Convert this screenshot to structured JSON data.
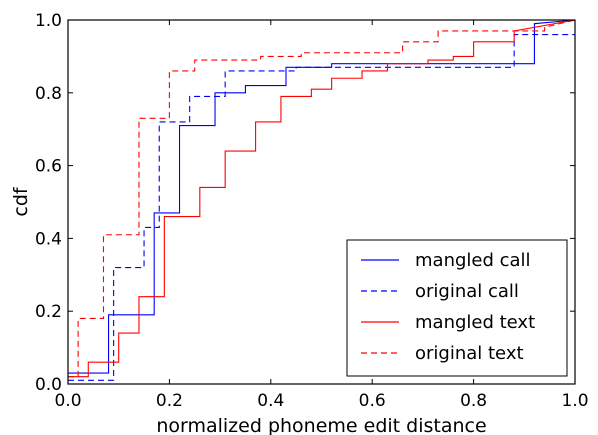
{
  "chart_data": {
    "type": "line",
    "xlabel": "normalized phoneme edit distance",
    "ylabel": "cdf",
    "xlim": [
      0.0,
      1.0
    ],
    "ylim": [
      0.0,
      1.0
    ],
    "grid": false,
    "legend_position": "lower-right",
    "x_ticks": [
      "0.0",
      "0.2",
      "0.4",
      "0.6",
      "0.8",
      "1.0"
    ],
    "y_ticks": [
      "0.0",
      "0.2",
      "0.4",
      "0.6",
      "0.8",
      "1.0"
    ],
    "series": [
      {
        "name": "mangled call",
        "color": "#0000ff",
        "dash": "solid",
        "points": [
          [
            0.0,
            0.03
          ],
          [
            0.08,
            0.03
          ],
          [
            0.08,
            0.19
          ],
          [
            0.17,
            0.19
          ],
          [
            0.17,
            0.47
          ],
          [
            0.22,
            0.47
          ],
          [
            0.22,
            0.71
          ],
          [
            0.29,
            0.71
          ],
          [
            0.29,
            0.8
          ],
          [
            0.35,
            0.8
          ],
          [
            0.35,
            0.82
          ],
          [
            0.43,
            0.82
          ],
          [
            0.43,
            0.87
          ],
          [
            0.52,
            0.87
          ],
          [
            0.52,
            0.88
          ],
          [
            0.92,
            0.88
          ],
          [
            0.92,
            0.99
          ],
          [
            1.0,
            1.0
          ]
        ]
      },
      {
        "name": "original call",
        "color": "#0000ff",
        "dash": "dashed",
        "points": [
          [
            0.0,
            0.01
          ],
          [
            0.09,
            0.01
          ],
          [
            0.09,
            0.32
          ],
          [
            0.15,
            0.32
          ],
          [
            0.15,
            0.43
          ],
          [
            0.18,
            0.43
          ],
          [
            0.18,
            0.72
          ],
          [
            0.24,
            0.72
          ],
          [
            0.24,
            0.79
          ],
          [
            0.31,
            0.79
          ],
          [
            0.31,
            0.86
          ],
          [
            0.45,
            0.86
          ],
          [
            0.45,
            0.87
          ],
          [
            0.88,
            0.87
          ],
          [
            0.88,
            0.96
          ],
          [
            1.0,
            0.96
          ]
        ]
      },
      {
        "name": "mangled text",
        "color": "#ff0000",
        "dash": "solid",
        "points": [
          [
            0.0,
            0.02
          ],
          [
            0.04,
            0.02
          ],
          [
            0.04,
            0.06
          ],
          [
            0.1,
            0.06
          ],
          [
            0.1,
            0.14
          ],
          [
            0.14,
            0.14
          ],
          [
            0.14,
            0.24
          ],
          [
            0.19,
            0.24
          ],
          [
            0.19,
            0.46
          ],
          [
            0.26,
            0.46
          ],
          [
            0.26,
            0.54
          ],
          [
            0.31,
            0.54
          ],
          [
            0.31,
            0.64
          ],
          [
            0.37,
            0.64
          ],
          [
            0.37,
            0.72
          ],
          [
            0.42,
            0.72
          ],
          [
            0.42,
            0.79
          ],
          [
            0.48,
            0.79
          ],
          [
            0.48,
            0.81
          ],
          [
            0.52,
            0.81
          ],
          [
            0.52,
            0.84
          ],
          [
            0.58,
            0.84
          ],
          [
            0.58,
            0.86
          ],
          [
            0.63,
            0.86
          ],
          [
            0.63,
            0.88
          ],
          [
            0.71,
            0.88
          ],
          [
            0.71,
            0.89
          ],
          [
            0.76,
            0.89
          ],
          [
            0.76,
            0.9
          ],
          [
            0.8,
            0.9
          ],
          [
            0.8,
            0.94
          ],
          [
            0.88,
            0.94
          ],
          [
            0.88,
            0.97
          ],
          [
            1.0,
            1.0
          ]
        ]
      },
      {
        "name": "original text",
        "color": "#ff0000",
        "dash": "dashed",
        "points": [
          [
            0.0,
            0.02
          ],
          [
            0.02,
            0.02
          ],
          [
            0.02,
            0.18
          ],
          [
            0.07,
            0.18
          ],
          [
            0.07,
            0.41
          ],
          [
            0.14,
            0.41
          ],
          [
            0.14,
            0.73
          ],
          [
            0.2,
            0.73
          ],
          [
            0.2,
            0.86
          ],
          [
            0.25,
            0.86
          ],
          [
            0.25,
            0.89
          ],
          [
            0.38,
            0.89
          ],
          [
            0.38,
            0.9
          ],
          [
            0.46,
            0.9
          ],
          [
            0.46,
            0.91
          ],
          [
            0.66,
            0.91
          ],
          [
            0.66,
            0.94
          ],
          [
            0.73,
            0.94
          ],
          [
            0.73,
            0.97
          ],
          [
            0.94,
            0.97
          ],
          [
            0.94,
            0.98
          ],
          [
            1.0,
            1.0
          ]
        ]
      }
    ]
  }
}
